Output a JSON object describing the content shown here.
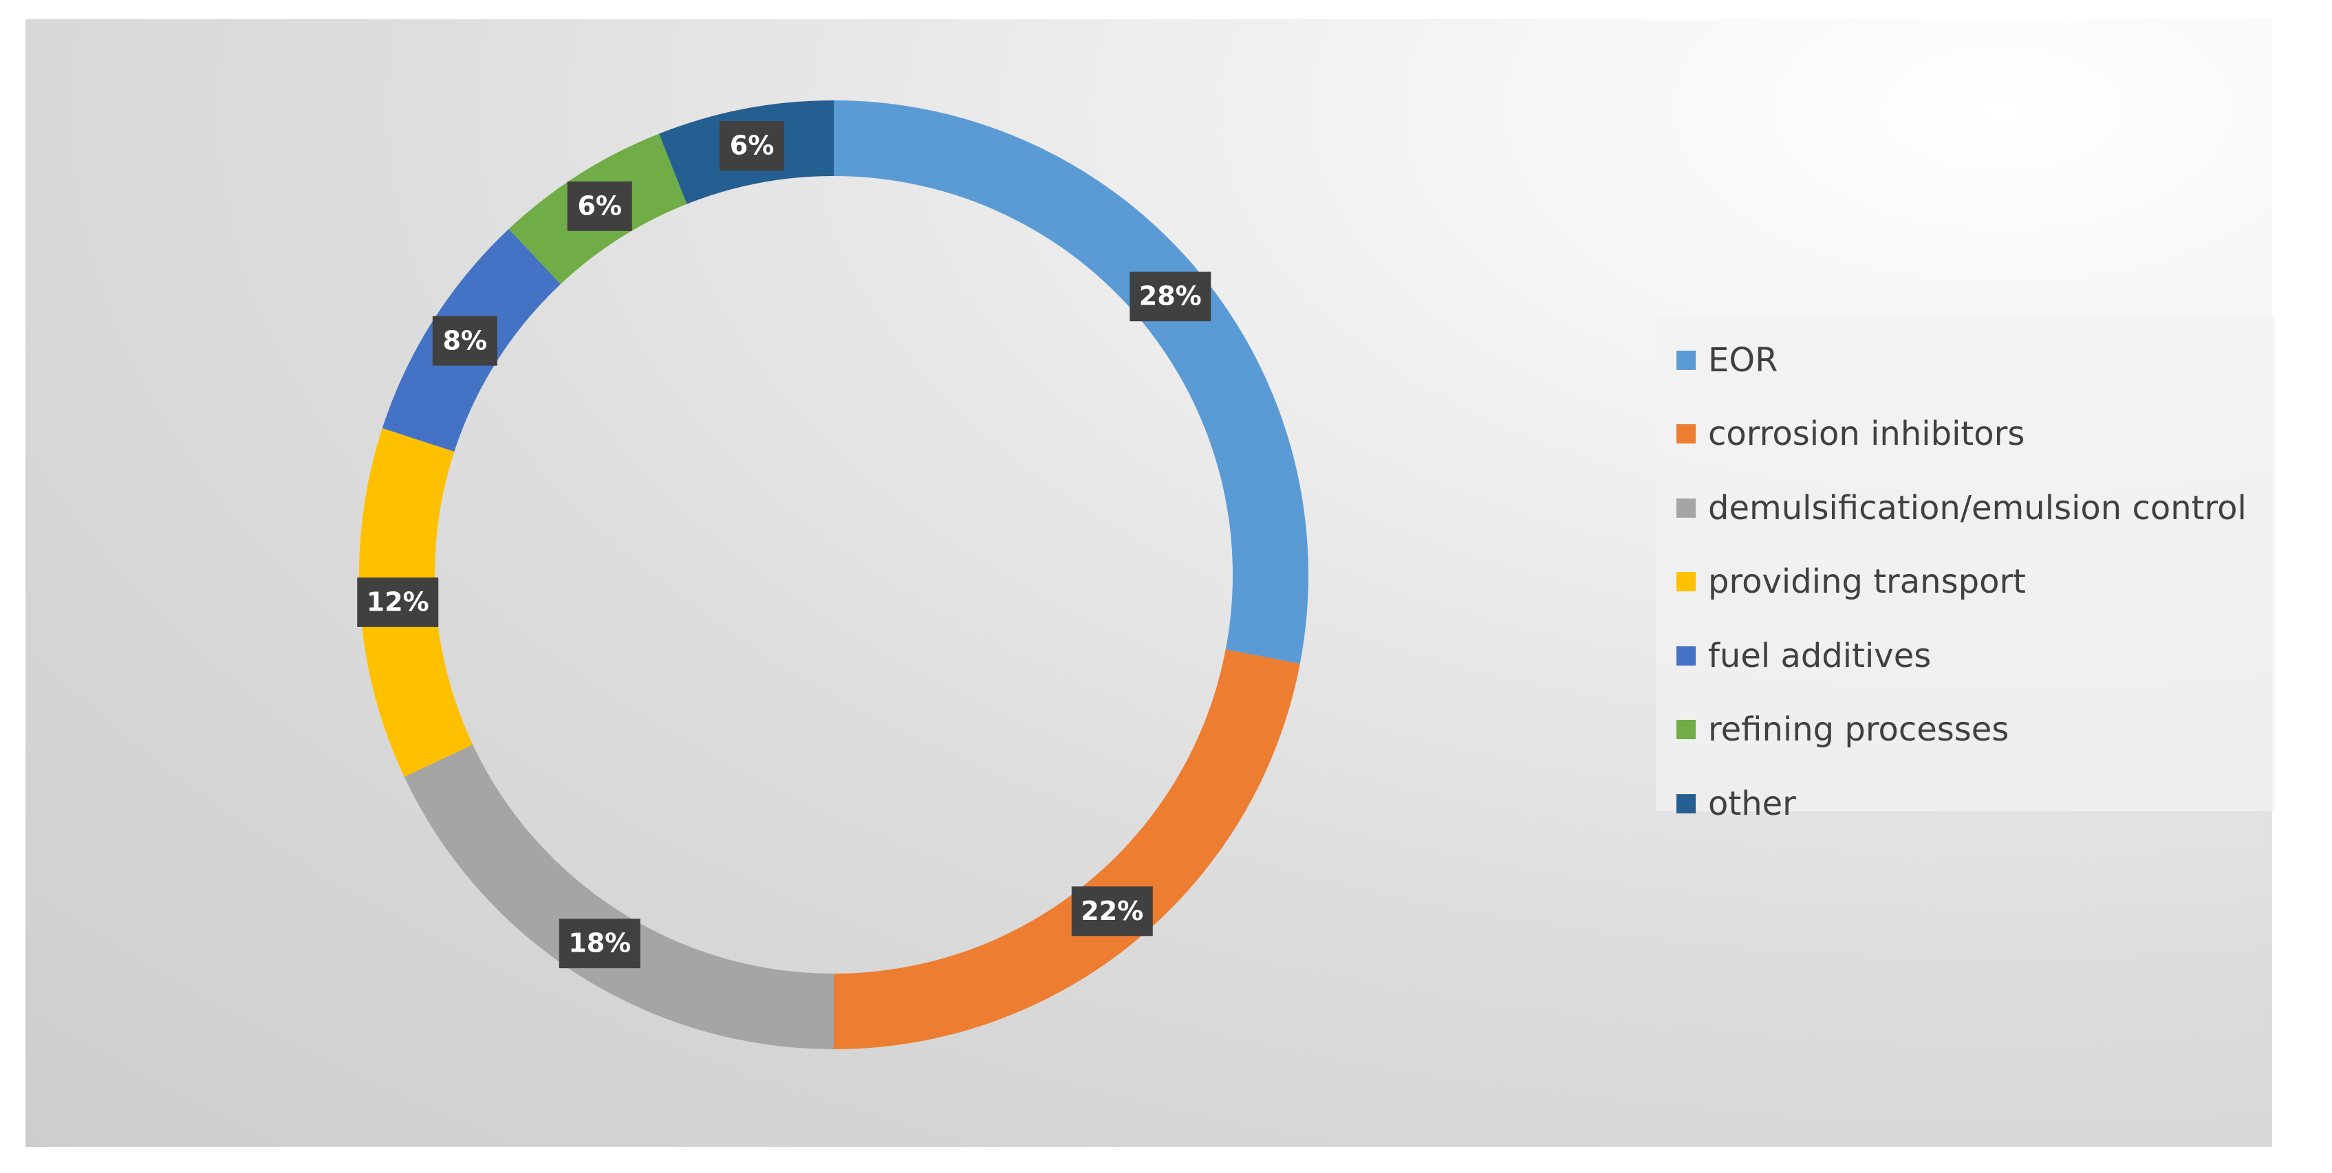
{
  "chart_data": {
    "type": "pie",
    "variant": "donut",
    "title": "",
    "legend_position": "right",
    "slices": [
      {
        "label": "EOR",
        "value": 28,
        "display": "28%",
        "color": "#5b9bd5"
      },
      {
        "label": "corrosion inhibitors",
        "value": 22,
        "display": "22%",
        "color": "#ed7d31"
      },
      {
        "label": "demulsification/emulsion control",
        "value": 18,
        "display": "18%",
        "color": "#a5a5a5"
      },
      {
        "label": "providing transport",
        "value": 12,
        "display": "12%",
        "color": "#ffc000"
      },
      {
        "label": "fuel additives",
        "value": 8,
        "display": "8%",
        "color": "#4472c4"
      },
      {
        "label": "refining processes",
        "value": 6,
        "display": "6%",
        "color": "#70ad47"
      },
      {
        "label": "other",
        "value": 6,
        "display": "6%",
        "color": "#255e91"
      }
    ]
  },
  "label_style": {
    "box_color": "#404040",
    "text_color": "#ffffff"
  }
}
